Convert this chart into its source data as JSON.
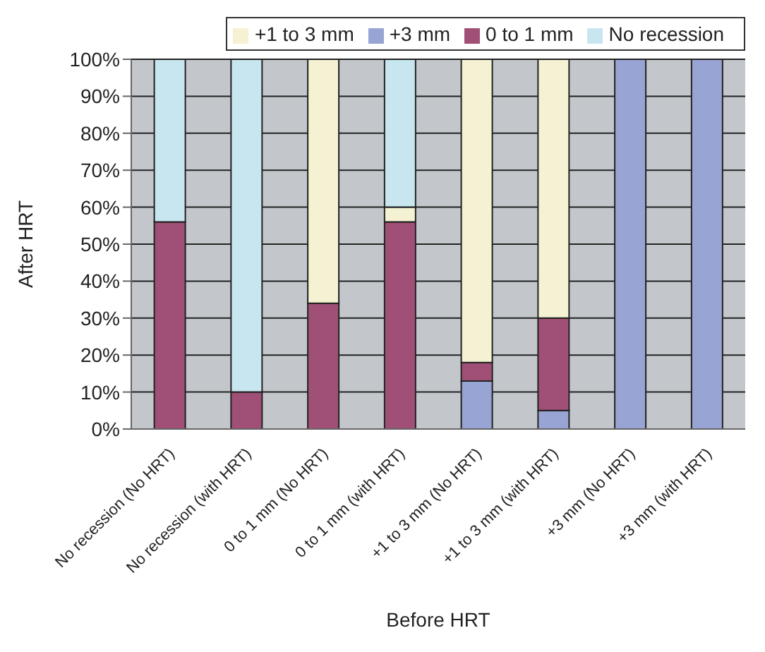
{
  "chart_data": {
    "type": "bar",
    "stacked": true,
    "xlabel": "Before HRT",
    "ylabel": "After HRT",
    "categories": [
      "No recession (No HRT)",
      "No recession (with HRT)",
      "0 to 1 mm (No HRT)",
      "0 to 1 mm (with HRT)",
      "+1 to 3 mm (No HRT)",
      "+1 to 3 mm (with HRT)",
      "+3 mm (No HRT)",
      "+3 mm (with HRT)"
    ],
    "series": [
      {
        "name": "+3 mm",
        "color": "#98a4d4",
        "values": [
          0,
          0,
          0,
          0,
          13,
          5,
          100,
          100
        ]
      },
      {
        "name": "0 to 1 mm",
        "color": "#a05076",
        "values": [
          56,
          10,
          34,
          56,
          5,
          25,
          0,
          0
        ]
      },
      {
        "name": "+1 to 3 mm",
        "color": "#f4f2d2",
        "values": [
          0,
          0,
          66,
          4,
          82,
          70,
          0,
          0
        ]
      },
      {
        "name": "No recession",
        "color": "#c8e6f0",
        "values": [
          44,
          90,
          0,
          40,
          0,
          0,
          0,
          0
        ]
      }
    ],
    "ylim": [
      0,
      100
    ],
    "yticks": [
      {
        "value": 0,
        "label": "0%"
      },
      {
        "value": 10,
        "label": "10%"
      },
      {
        "value": 20,
        "label": "20%"
      },
      {
        "value": 30,
        "label": "30%"
      },
      {
        "value": 40,
        "label": "40%"
      },
      {
        "value": 50,
        "label": "50%"
      },
      {
        "value": 60,
        "label": "60%"
      },
      {
        "value": 70,
        "label": "70%"
      },
      {
        "value": 80,
        "label": "80%"
      },
      {
        "value": 90,
        "label": "90%"
      },
      {
        "value": 100,
        "label": "100%"
      }
    ],
    "grid": "y",
    "legend": "top right"
  }
}
